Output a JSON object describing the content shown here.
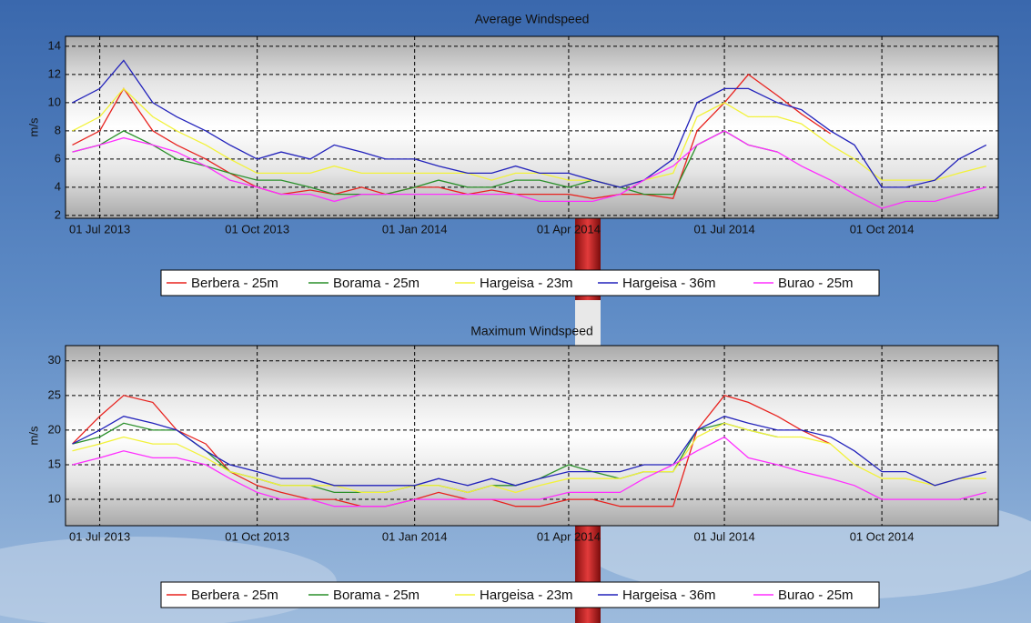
{
  "chart_data": [
    {
      "type": "line",
      "title": "Average Windspeed",
      "y_label": "m/s",
      "x": [
        "2013-06-15",
        "2013-07-01",
        "2013-07-15",
        "2013-08-01",
        "2013-08-15",
        "2013-09-01",
        "2013-09-15",
        "2013-10-01",
        "2013-10-15",
        "2013-11-01",
        "2013-11-15",
        "2013-12-01",
        "2013-12-15",
        "2014-01-01",
        "2014-01-15",
        "2014-02-01",
        "2014-02-15",
        "2014-03-01",
        "2014-03-15",
        "2014-04-01",
        "2014-04-15",
        "2014-05-01",
        "2014-05-15",
        "2014-06-01",
        "2014-06-15",
        "2014-07-01",
        "2014-07-15",
        "2014-08-01",
        "2014-08-15",
        "2014-09-01",
        "2014-09-15",
        "2014-10-01",
        "2014-10-15",
        "2014-11-01",
        "2014-11-15",
        "2014-12-01"
      ],
      "series": [
        {
          "name": "Berbera - 25m",
          "color": "#e8231f",
          "values": [
            7,
            8,
            11,
            8,
            7,
            6,
            5,
            4,
            3.5,
            3.8,
            3.5,
            4,
            3.5,
            4,
            4,
            3.5,
            3.8,
            3.5,
            3.5,
            3.5,
            3.2,
            3.5,
            3.5,
            3.2,
            8,
            10,
            12,
            10.5,
            9.2,
            7.8,
            null,
            null,
            null,
            null,
            null,
            null
          ]
        },
        {
          "name": "Borama - 25m",
          "color": "#2a8f2a",
          "values": [
            6.5,
            7,
            8,
            7,
            6,
            5.5,
            5,
            4.5,
            4.5,
            4,
            3.5,
            3.5,
            3.5,
            4,
            4.5,
            4,
            4,
            4.5,
            4.5,
            4,
            4.5,
            4,
            3.5,
            3.5,
            7,
            8,
            7,
            6.5,
            null,
            null,
            null,
            null,
            null,
            null,
            null,
            null
          ]
        },
        {
          "name": "Hargeisa - 23m",
          "color": "#f2f23a",
          "values": [
            8,
            9,
            11,
            9,
            8,
            7,
            6,
            5,
            5,
            5,
            5.5,
            5,
            5,
            5,
            5,
            5,
            4.5,
            5,
            5,
            4.5,
            4.5,
            4,
            4.5,
            5,
            9,
            10,
            9,
            9,
            8.5,
            7,
            6,
            4.5,
            4.5,
            4.5,
            5,
            5.5
          ]
        },
        {
          "name": "Hargeisa - 36m",
          "color": "#2222bb",
          "values": [
            10,
            11,
            13,
            10,
            9,
            8,
            7,
            6,
            6.5,
            6,
            7,
            6.5,
            6,
            6,
            5.5,
            5,
            5,
            5.5,
            5,
            5,
            4.5,
            4,
            4.5,
            6,
            10,
            11,
            11,
            10,
            9.5,
            8,
            7,
            4,
            4,
            4.5,
            6,
            7
          ]
        },
        {
          "name": "Burao - 25m",
          "color": "#ff2eff",
          "values": [
            6.5,
            7,
            7.5,
            7,
            6.5,
            5.5,
            4.5,
            4,
            3.5,
            3.5,
            3,
            3.5,
            3.5,
            3.5,
            3.5,
            3.5,
            3.5,
            3.5,
            3,
            3,
            3,
            3.5,
            4.5,
            5.5,
            7,
            8,
            7,
            6.5,
            5.5,
            4.5,
            3.5,
            2.5,
            3,
            3,
            3.5,
            4
          ]
        }
      ],
      "xlim": [
        "2013-06-11",
        "2014-12-08"
      ],
      "xticks": [
        {
          "value": "2013-07-01",
          "label": "01 Jul 2013"
        },
        {
          "value": "2013-10-01",
          "label": "01 Oct 2013"
        },
        {
          "value": "2014-01-01",
          "label": "01 Jan 2014"
        },
        {
          "value": "2014-04-01",
          "label": "01 Apr 2014"
        },
        {
          "value": "2014-07-01",
          "label": "01 Jul 2014"
        },
        {
          "value": "2014-10-01",
          "label": "01 Oct 2014"
        }
      ],
      "ylim": [
        1.8,
        14.7
      ],
      "yticks": [
        2,
        4,
        6,
        8,
        10,
        12,
        14
      ],
      "grid": true
    },
    {
      "type": "line",
      "title": "Maximum Windspeed",
      "y_label": "m/s",
      "x": [
        "2013-06-15",
        "2013-07-01",
        "2013-07-15",
        "2013-08-01",
        "2013-08-15",
        "2013-09-01",
        "2013-09-15",
        "2013-10-01",
        "2013-10-15",
        "2013-11-01",
        "2013-11-15",
        "2013-12-01",
        "2013-12-15",
        "2014-01-01",
        "2014-01-15",
        "2014-02-01",
        "2014-02-15",
        "2014-03-01",
        "2014-03-15",
        "2014-04-01",
        "2014-04-15",
        "2014-05-01",
        "2014-05-15",
        "2014-06-01",
        "2014-06-15",
        "2014-07-01",
        "2014-07-15",
        "2014-08-01",
        "2014-08-15",
        "2014-09-01",
        "2014-09-15",
        "2014-10-01",
        "2014-10-15",
        "2014-11-01",
        "2014-11-15",
        "2014-12-01"
      ],
      "series": [
        {
          "name": "Berbera - 25m",
          "color": "#e8231f",
          "values": [
            18,
            22,
            25,
            24,
            20,
            18,
            14,
            12,
            11,
            10,
            10,
            9,
            9,
            10,
            11,
            10,
            10,
            9,
            9,
            10,
            10,
            9,
            9,
            9,
            20,
            25,
            24,
            22,
            20,
            18,
            null,
            null,
            null,
            null,
            null,
            null
          ]
        },
        {
          "name": "Borama - 25m",
          "color": "#2a8f2a",
          "values": [
            18,
            19,
            21,
            20,
            20,
            17,
            14,
            13,
            12,
            12,
            11,
            11,
            11,
            12,
            12,
            11,
            12,
            12,
            13,
            15,
            14,
            13,
            14,
            14,
            20,
            21,
            20,
            19,
            null,
            null,
            null,
            null,
            null,
            null,
            null,
            null
          ]
        },
        {
          "name": "Hargeisa - 23m",
          "color": "#f2f23a",
          "values": [
            17,
            18,
            19,
            18,
            18,
            16,
            14,
            13,
            12,
            12,
            12,
            11,
            11,
            12,
            12,
            11,
            12,
            11,
            12,
            13,
            13,
            13,
            14,
            14,
            19,
            21,
            20,
            19,
            19,
            18,
            15,
            13,
            13,
            12,
            13,
            13
          ]
        },
        {
          "name": "Hargeisa - 36m",
          "color": "#2222bb",
          "values": [
            18,
            20,
            22,
            21,
            20,
            17,
            15,
            14,
            13,
            13,
            12,
            12,
            12,
            12,
            13,
            12,
            13,
            12,
            13,
            14,
            14,
            14,
            15,
            15,
            20,
            22,
            21,
            20,
            20,
            19,
            17,
            14,
            14,
            12,
            13,
            14
          ]
        },
        {
          "name": "Burao - 25m",
          "color": "#ff2eff",
          "values": [
            15,
            16,
            17,
            16,
            16,
            15,
            13,
            11,
            10,
            10,
            9,
            9,
            9,
            10,
            10,
            10,
            10,
            10,
            10,
            11,
            11,
            11,
            13,
            15,
            17,
            19,
            16,
            15,
            14,
            13,
            12,
            10,
            10,
            10,
            10,
            11
          ]
        }
      ],
      "xlim": [
        "2013-06-11",
        "2014-12-08"
      ],
      "xticks": [
        {
          "value": "2013-07-01",
          "label": "01 Jul 2013"
        },
        {
          "value": "2013-10-01",
          "label": "01 Oct 2013"
        },
        {
          "value": "2014-01-01",
          "label": "01 Jan 2014"
        },
        {
          "value": "2014-04-01",
          "label": "01 Apr 2014"
        },
        {
          "value": "2014-07-01",
          "label": "01 Jul 2014"
        },
        {
          "value": "2014-10-01",
          "label": "01 Oct 2014"
        }
      ],
      "ylim": [
        6.2,
        32.2
      ],
      "yticks": [
        10,
        15,
        20,
        25,
        30
      ],
      "grid": true
    }
  ]
}
